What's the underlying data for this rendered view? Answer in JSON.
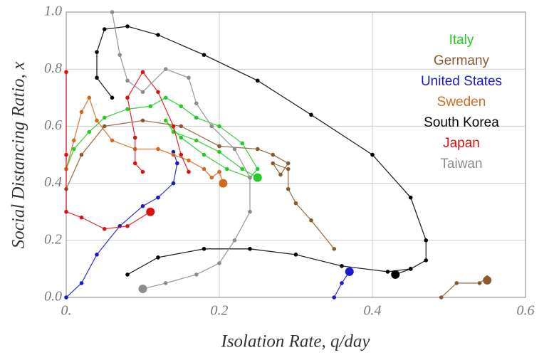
{
  "chart_data": {
    "type": "line",
    "xlabel": "Isolation Rate, q/day",
    "ylabel": "Social Distancing Ratio, x",
    "xlim": [
      0,
      0.6
    ],
    "ylim": [
      0,
      1.0
    ],
    "xticks": [
      {
        "value": 0,
        "label": "0."
      },
      0.2,
      0.4,
      0.6
    ],
    "yticks": [
      {
        "value": 0,
        "label": "0.0"
      },
      0.2,
      0.4,
      0.6,
      0.8,
      {
        "value": 1,
        "label": "1.0"
      }
    ],
    "grid": true,
    "legend": "upper right",
    "series": [
      {
        "name": "Italy",
        "color": "#22cc22",
        "x": [
          0.0,
          0.01,
          0.03,
          0.05,
          0.08,
          0.11,
          0.13,
          0.15,
          0.17,
          0.2,
          0.23,
          0.25,
          0.24,
          0.21,
          0.18,
          0.15,
          0.13,
          0.14,
          0.17,
          0.2,
          0.23,
          0.25
        ],
        "y": [
          0.45,
          0.52,
          0.58,
          0.63,
          0.66,
          0.67,
          0.7,
          0.67,
          0.63,
          0.6,
          0.54,
          0.45,
          0.42,
          0.45,
          0.5,
          0.56,
          0.62,
          0.58,
          0.55,
          0.51,
          0.45,
          0.42
        ]
      },
      {
        "name": "Germany",
        "color": "#8b5a2b",
        "x": [
          0.0,
          0.02,
          0.05,
          0.1,
          0.15,
          0.2,
          0.25,
          0.27,
          0.29,
          0.28,
          0.27,
          0.29,
          0.29,
          0.3,
          0.32,
          0.35,
          null,
          0.49,
          0.51,
          0.54,
          0.55,
          0.55
        ],
        "y": [
          0.38,
          0.5,
          0.6,
          0.62,
          0.6,
          0.53,
          0.52,
          0.5,
          0.47,
          0.43,
          0.47,
          0.45,
          0.38,
          0.33,
          0.27,
          0.17,
          null,
          0.0,
          0.05,
          0.05,
          0.07,
          0.06
        ]
      },
      {
        "name": "United States",
        "color": "#1a1acc",
        "x": [
          0.0,
          0.02,
          0.04,
          0.07,
          0.1,
          0.12,
          0.14,
          0.145,
          0.14,
          null,
          0.35,
          0.36,
          0.37
        ],
        "y": [
          0.0,
          0.05,
          0.15,
          0.25,
          0.32,
          0.35,
          0.4,
          0.47,
          0.51,
          null,
          0.0,
          0.05,
          0.09
        ]
      },
      {
        "name": "Sweden",
        "color": "#d2691e",
        "x": [
          0.0,
          0.01,
          0.02,
          0.03,
          0.04,
          0.06,
          0.09,
          0.12,
          0.14,
          0.16,
          0.18,
          0.19,
          0.2,
          0.205
        ],
        "y": [
          0.45,
          0.55,
          0.65,
          0.7,
          0.62,
          0.55,
          0.52,
          0.52,
          0.5,
          0.48,
          0.45,
          0.42,
          0.44,
          0.4
        ]
      },
      {
        "name": "South Korea",
        "color": "#000000",
        "x": [
          0.08,
          0.12,
          0.18,
          0.24,
          0.3,
          0.36,
          0.42,
          0.45,
          null,
          0.06,
          0.04,
          0.04,
          0.05,
          0.08,
          0.12,
          0.18,
          0.25,
          0.32,
          0.4,
          0.45,
          0.47,
          0.47,
          0.45,
          0.43
        ],
        "y": [
          0.08,
          0.14,
          0.17,
          0.17,
          0.15,
          0.11,
          0.09,
          0.1,
          null,
          0.7,
          0.77,
          0.86,
          0.94,
          0.95,
          0.92,
          0.85,
          0.76,
          0.64,
          0.5,
          0.35,
          0.2,
          0.13,
          0.1,
          0.08
        ]
      },
      {
        "name": "Japan",
        "color": "#dd1111",
        "x": [
          0.16,
          0.15,
          0.14,
          0.12,
          0.1,
          0.08,
          0.09,
          0.09,
          0.1,
          null,
          0.0,
          0.0,
          0.0,
          0.02,
          0.05,
          0.08,
          0.11
        ],
        "y": [
          0.44,
          0.5,
          0.6,
          0.72,
          0.79,
          0.7,
          0.56,
          0.47,
          0.44,
          null,
          0.79,
          0.5,
          0.3,
          0.28,
          0.24,
          0.25,
          0.3
        ]
      },
      {
        "name": "Taiwan",
        "color": "#8c8c8c",
        "x": [
          0.06,
          0.07,
          0.08,
          0.1,
          0.13,
          0.16,
          0.17,
          0.19,
          0.22,
          0.24,
          0.24,
          0.22,
          0.2,
          0.17,
          0.13,
          0.1
        ],
        "y": [
          1.0,
          0.85,
          0.76,
          0.72,
          0.8,
          0.77,
          0.68,
          0.6,
          0.52,
          0.42,
          0.3,
          0.2,
          0.12,
          0.08,
          0.05,
          0.03
        ]
      }
    ]
  }
}
